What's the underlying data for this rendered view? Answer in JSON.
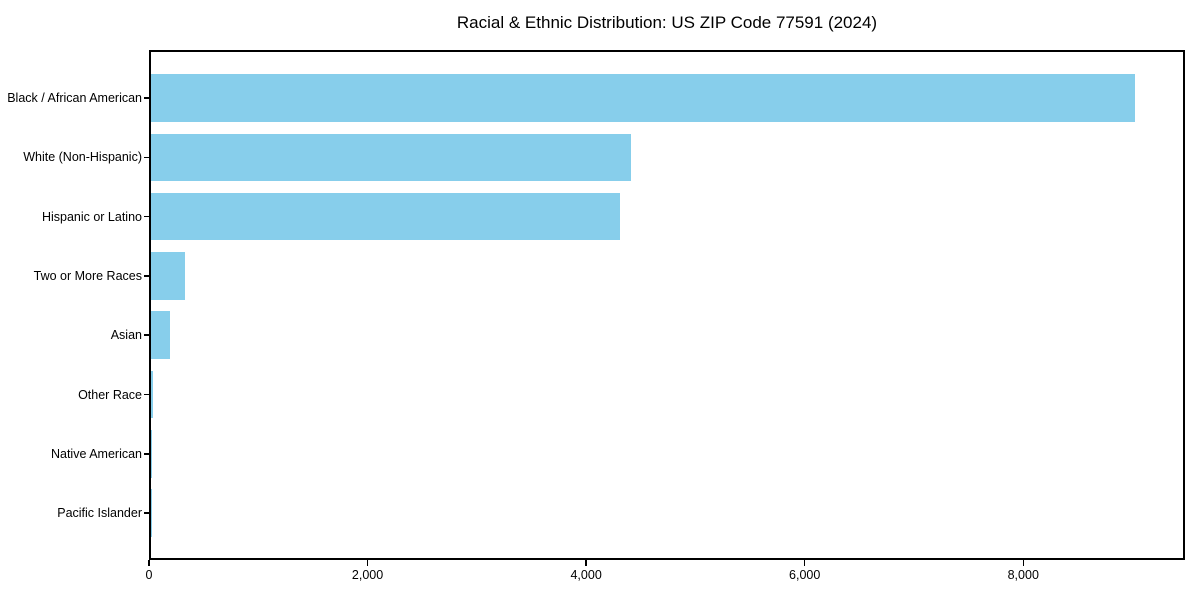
{
  "chart_data": {
    "type": "bar",
    "orientation": "horizontal",
    "title": "Racial & Ethnic Distribution: US ZIP Code 77591 (2024)",
    "categories": [
      "Black / African American",
      "White (Non-Hispanic)",
      "Hispanic or Latino",
      "Two or More Races",
      "Asian",
      "Other Race",
      "Native American",
      "Pacific Islander"
    ],
    "values": [
      9040,
      4410,
      4310,
      308,
      177,
      14,
      3,
      1
    ],
    "xlabel": "",
    "ylabel": "",
    "xlim": [
      0,
      9480
    ],
    "xticks": {
      "values": [
        0,
        2000,
        4000,
        6000,
        8000
      ],
      "labels": [
        "0",
        "2,000",
        "4,000",
        "6,000",
        "8,000"
      ]
    },
    "grid": false,
    "legend": null,
    "bar_color": "#87CEEB",
    "axis_color": "#000000",
    "background_color": "#ffffff"
  }
}
